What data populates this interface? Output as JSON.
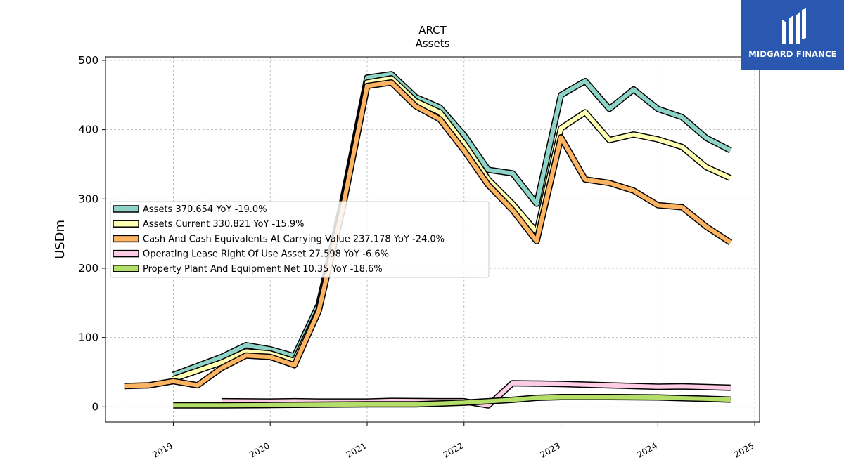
{
  "chart_data": {
    "type": "line",
    "title": "ARCT",
    "subtitle": "Assets",
    "ylabel": "USDm",
    "xlabel": "",
    "xlim": [
      2018.3,
      2025.05
    ],
    "ylim": [
      -22,
      505
    ],
    "yticks": [
      0,
      100,
      200,
      300,
      400,
      500
    ],
    "xticks": [
      "2019",
      "2020",
      "2021",
      "2022",
      "2023",
      "2024",
      "2025"
    ],
    "grid": true,
    "legend_position": "center-left",
    "series": [
      {
        "name": "Assets  370.654 YoY -19.0%",
        "color": "#8dd3c7",
        "x": [
          2019.0,
          2019.5,
          2019.75,
          2020.0,
          2020.25,
          2020.5,
          2020.75,
          2021.0,
          2021.25,
          2021.5,
          2021.75,
          2022.0,
          2022.25,
          2022.5,
          2022.75,
          2023.0,
          2023.25,
          2023.5,
          2023.75,
          2024.0,
          2024.25,
          2024.5,
          2024.75
        ],
        "y": [
          46,
          72,
          89,
          83,
          73,
          147,
          300,
          475,
          480,
          447,
          432,
          392,
          342,
          337,
          293,
          450,
          470,
          430,
          458,
          430,
          418,
          388,
          370
        ]
      },
      {
        "name": "Assets Current  330.821 YoY -15.9%",
        "color": "#ffffb3",
        "x": [
          2019.0,
          2019.5,
          2019.75,
          2020.0,
          2020.25,
          2020.5,
          2020.75,
          2021.0,
          2021.25,
          2021.5,
          2021.75,
          2022.0,
          2022.25,
          2022.5,
          2022.75,
          2023.0,
          2023.25,
          2023.5,
          2023.75,
          2024.0,
          2024.25,
          2024.5,
          2024.75
        ],
        "y": [
          40,
          64,
          80,
          77,
          66,
          140,
          294,
          468,
          474,
          441,
          425,
          380,
          328,
          293,
          252,
          402,
          425,
          385,
          393,
          386,
          375,
          346,
          330
        ]
      },
      {
        "name": "Cash And Cash Equivalents At Carrying Value  237.178 YoY -24.0%",
        "color": "#fdb462",
        "x": [
          2018.5,
          2018.75,
          2019.0,
          2019.25,
          2019.5,
          2019.75,
          2020.0,
          2020.25,
          2020.5,
          2020.75,
          2021.0,
          2021.25,
          2021.5,
          2021.75,
          2022.0,
          2022.25,
          2022.5,
          2022.75,
          2023.0,
          2023.25,
          2023.5,
          2023.75,
          2024.0,
          2024.25,
          2024.5,
          2024.75
        ],
        "y": [
          30,
          31,
          37,
          31,
          56,
          74,
          72,
          60,
          138,
          288,
          463,
          468,
          434,
          415,
          370,
          320,
          284,
          239,
          389,
          328,
          323,
          312,
          291,
          288,
          260,
          237
        ]
      },
      {
        "name": "Operating Lease Right Of Use Asset  27.598 YoY -6.6%",
        "color": "#fccde5",
        "x": [
          2019.5,
          2020.0,
          2020.25,
          2020.5,
          2021.0,
          2021.25,
          2021.75,
          2022.0,
          2022.25,
          2022.5,
          2023.0,
          2023.5,
          2024.0,
          2024.25,
          2024.75
        ],
        "y": [
          8,
          7.5,
          8,
          7.5,
          7.5,
          8.5,
          8,
          8,
          2,
          34,
          33,
          31,
          29,
          29.5,
          27.6
        ]
      },
      {
        "name": "Property Plant And Equipment Net  10.35 YoY -18.6%",
        "color": "#b3de69",
        "x": [
          2019.0,
          2019.5,
          2020.0,
          2020.5,
          2021.0,
          2021.5,
          2022.0,
          2022.25,
          2022.5,
          2022.75,
          2023.0,
          2023.5,
          2024.0,
          2024.25,
          2024.5,
          2024.75
        ],
        "y": [
          2,
          2,
          2.5,
          3,
          3.5,
          3.5,
          6,
          8,
          10,
          13,
          14,
          14,
          13.5,
          12.5,
          11.5,
          10.35
        ]
      }
    ]
  },
  "logo": {
    "brand": "MIDGARD FINANCE",
    "icon": "midgard-monogram-icon",
    "color": "#2a57b0"
  }
}
